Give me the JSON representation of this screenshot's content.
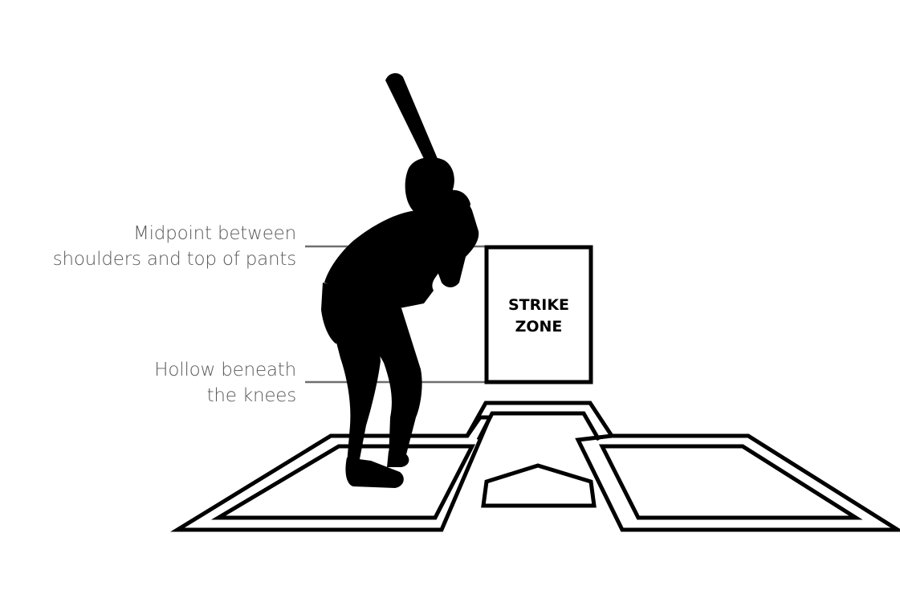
{
  "callouts": {
    "top": {
      "line1": "Midpoint between",
      "line2": "shoulders and top of pants"
    },
    "bottom": {
      "line1": "Hollow beneath",
      "line2": "the knees"
    }
  },
  "strike_zone": {
    "line1": "STRIKE",
    "line2": "ZONE"
  },
  "colors": {
    "ink": "#000000",
    "label_text": "#5a5a5a",
    "leader_line": "#6e6e6e",
    "background": "#ffffff"
  }
}
